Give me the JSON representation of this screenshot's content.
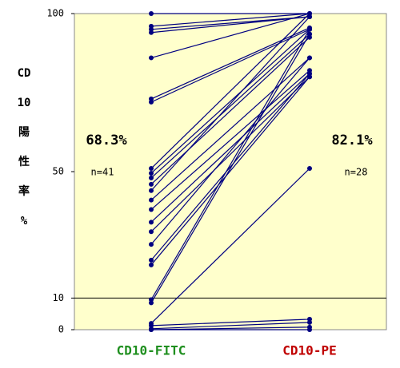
{
  "chart_data": {
    "type": "paired",
    "categories": [
      "CD10-FITC",
      "CD10-PE"
    ],
    "category_colors": [
      "#1f8f1f",
      "#c00000"
    ],
    "y_label_lines": [
      "CD",
      "10",
      "陽",
      "性",
      "率",
      "%"
    ],
    "ylim": [
      0,
      100
    ],
    "yticks": [
      0,
      10,
      50,
      100
    ],
    "reference_line": 10,
    "color": "#000080",
    "background": "#ffffcc",
    "annotations": [
      {
        "text": "68.3%",
        "n": "n=41"
      },
      {
        "text": "82.1%",
        "n": "n=28"
      }
    ],
    "pairs": [
      [
        100,
        100
      ],
      [
        96,
        100
      ],
      [
        95,
        99
      ],
      [
        94,
        99
      ],
      [
        86,
        100
      ],
      [
        73,
        95.5
      ],
      [
        72,
        95
      ],
      [
        51,
        100
      ],
      [
        49.5,
        95
      ],
      [
        48,
        93.5
      ],
      [
        46,
        92.5
      ],
      [
        44,
        99
      ],
      [
        41,
        86
      ],
      [
        38,
        82
      ],
      [
        34,
        81
      ],
      [
        31,
        80
      ],
      [
        27,
        86
      ],
      [
        22,
        81
      ],
      [
        20.5,
        80
      ],
      [
        9.5,
        95
      ],
      [
        8.5,
        93.5
      ],
      [
        2,
        51
      ],
      [
        1.3,
        3.3
      ],
      [
        0.3,
        2.3
      ],
      [
        0,
        0.8
      ],
      [
        0,
        0
      ]
    ]
  }
}
